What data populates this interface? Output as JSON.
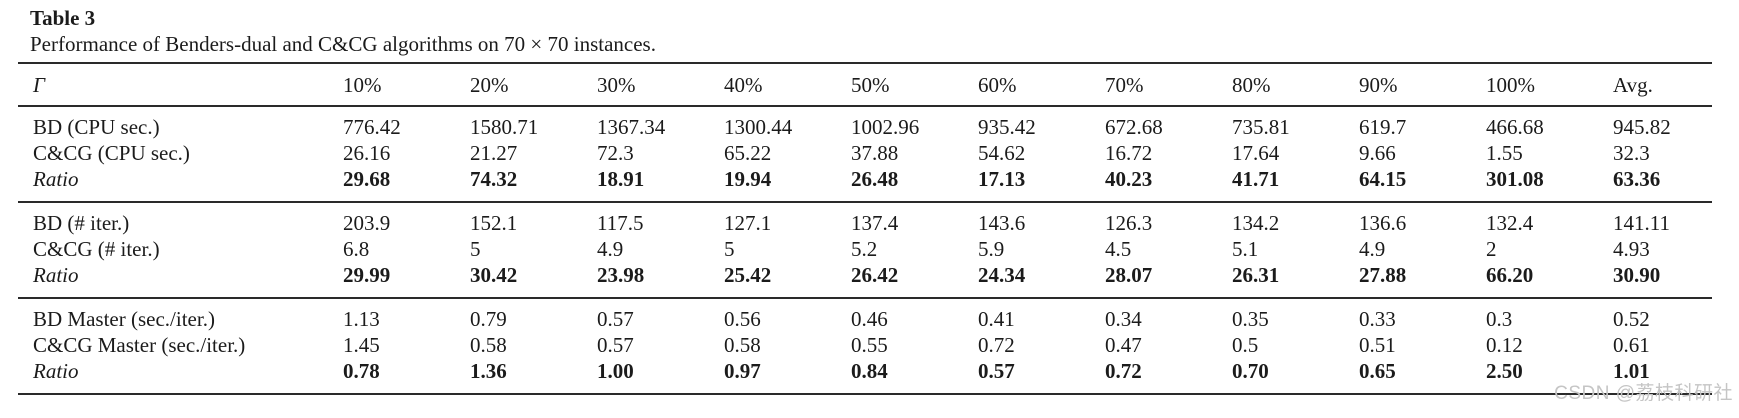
{
  "title": "Table 3",
  "caption": "Performance of Benders-dual and C&CG algorithms on 70 × 70 instances.",
  "watermark": "CSDN @荔枝科研社",
  "table": {
    "columns": [
      "Γ",
      "10%",
      "20%",
      "30%",
      "40%",
      "50%",
      "60%",
      "70%",
      "80%",
      "90%",
      "100%",
      "Avg."
    ],
    "blocks": [
      {
        "rows": [
          {
            "label": "BD (CPU sec.)",
            "italic": false,
            "bold": false,
            "values": [
              "776.42",
              "1580.71",
              "1367.34",
              "1300.44",
              "1002.96",
              "935.42",
              "672.68",
              "735.81",
              "619.7",
              "466.68",
              "945.82"
            ]
          },
          {
            "label": "C&CG (CPU sec.)",
            "italic": false,
            "bold": false,
            "values": [
              "26.16",
              "21.27",
              "72.3",
              "65.22",
              "37.88",
              "54.62",
              "16.72",
              "17.64",
              "9.66",
              "1.55",
              "32.3"
            ]
          },
          {
            "label": "Ratio",
            "italic": true,
            "bold": true,
            "values": [
              "29.68",
              "74.32",
              "18.91",
              "19.94",
              "26.48",
              "17.13",
              "40.23",
              "41.71",
              "64.15",
              "301.08",
              "63.36"
            ]
          }
        ]
      },
      {
        "rows": [
          {
            "label": "BD (# iter.)",
            "italic": false,
            "bold": false,
            "values": [
              "203.9",
              "152.1",
              "117.5",
              "127.1",
              "137.4",
              "143.6",
              "126.3",
              "134.2",
              "136.6",
              "132.4",
              "141.11"
            ]
          },
          {
            "label": "C&CG (# iter.)",
            "italic": false,
            "bold": false,
            "values": [
              "6.8",
              "5",
              "4.9",
              "5",
              "5.2",
              "5.9",
              "4.5",
              "5.1",
              "4.9",
              "2",
              "4.93"
            ]
          },
          {
            "label": "Ratio",
            "italic": true,
            "bold": true,
            "values": [
              "29.99",
              "30.42",
              "23.98",
              "25.42",
              "26.42",
              "24.34",
              "28.07",
              "26.31",
              "27.88",
              "66.20",
              "30.90"
            ]
          }
        ]
      },
      {
        "rows": [
          {
            "label": "BD Master (sec./iter.)",
            "italic": false,
            "bold": false,
            "values": [
              "1.13",
              "0.79",
              "0.57",
              "0.56",
              "0.46",
              "0.41",
              "0.34",
              "0.35",
              "0.33",
              "0.3",
              "0.52"
            ]
          },
          {
            "label": "C&CG Master (sec./iter.)",
            "italic": false,
            "bold": false,
            "values": [
              "1.45",
              "0.58",
              "0.57",
              "0.58",
              "0.55",
              "0.72",
              "0.47",
              "0.5",
              "0.51",
              "0.12",
              "0.61"
            ]
          },
          {
            "label": "Ratio",
            "italic": true,
            "bold": true,
            "values": [
              "0.78",
              "1.36",
              "1.00",
              "0.97",
              "0.84",
              "0.57",
              "0.72",
              "0.70",
              "0.65",
              "2.50",
              "1.01"
            ]
          }
        ]
      }
    ]
  }
}
